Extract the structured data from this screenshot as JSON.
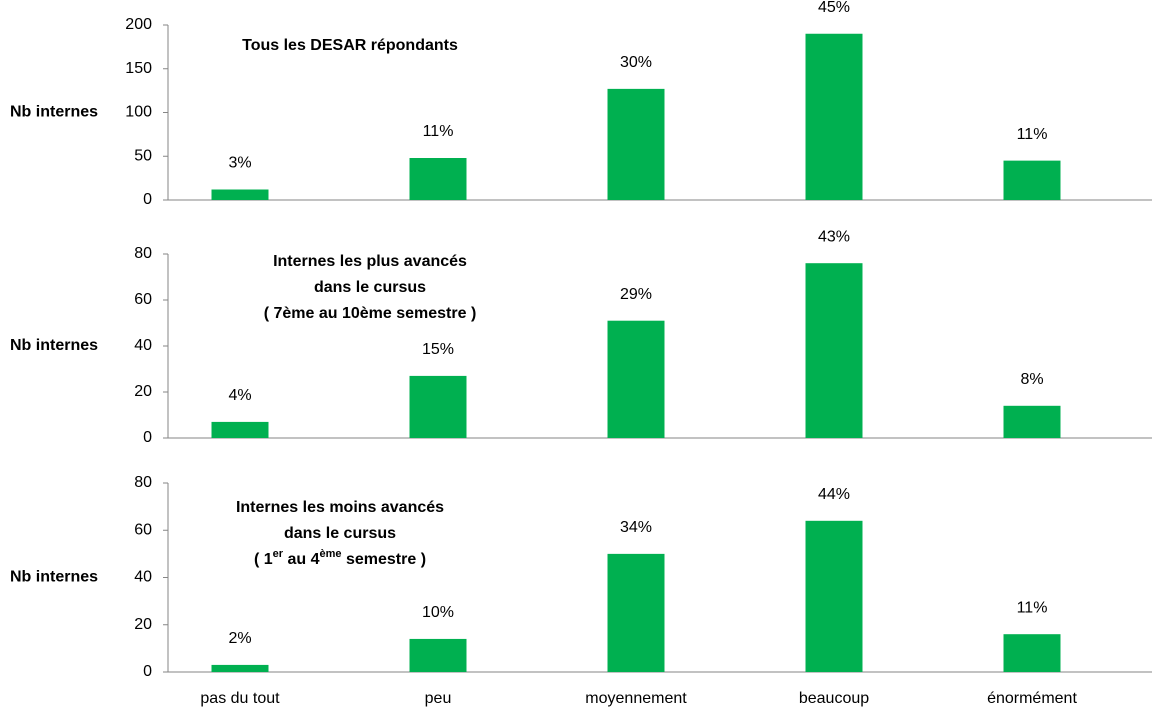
{
  "chart_data": [
    {
      "type": "bar",
      "title": [
        "Tous les DESAR répondants"
      ],
      "ylabel": "Nb internes",
      "categories": [
        null,
        null,
        null,
        null,
        null
      ],
      "values": [
        12,
        48,
        127,
        190,
        45
      ],
      "percent_labels": [
        "3%",
        "11%",
        "30%",
        "45%",
        "11%"
      ],
      "color": "#00b050",
      "ylim": [
        0,
        200
      ],
      "yticks": [
        0,
        50,
        100,
        150,
        200
      ]
    },
    {
      "type": "bar",
      "title": [
        "Internes les plus avancés",
        "dans le cursus",
        "( 7ème au 10ème semestre )"
      ],
      "ylabel": "Nb internes",
      "categories": [
        null,
        null,
        null,
        null,
        null
      ],
      "values": [
        7,
        27,
        51,
        76,
        14
      ],
      "percent_labels": [
        "4%",
        "15%",
        "29%",
        "43%",
        "8%"
      ],
      "color": "#00b050",
      "ylim": [
        0,
        80
      ],
      "yticks": [
        0,
        20,
        40,
        60,
        80
      ]
    },
    {
      "type": "bar",
      "title": [
        "Internes les moins avancés",
        "dans le cursus",
        [
          "( 1",
          "er",
          " au 4",
          "ème",
          " semestre )"
        ]
      ],
      "ylabel": "Nb internes",
      "categories": [
        "pas du tout",
        "peu",
        "moyennement",
        "beaucoup",
        "énormément"
      ],
      "values": [
        3,
        14,
        50,
        64,
        16
      ],
      "percent_labels": [
        "2%",
        "10%",
        "34%",
        "44%",
        "11%"
      ],
      "color": "#00b050",
      "ylim": [
        0,
        80
      ],
      "yticks": [
        0,
        20,
        40,
        60,
        80
      ]
    }
  ]
}
